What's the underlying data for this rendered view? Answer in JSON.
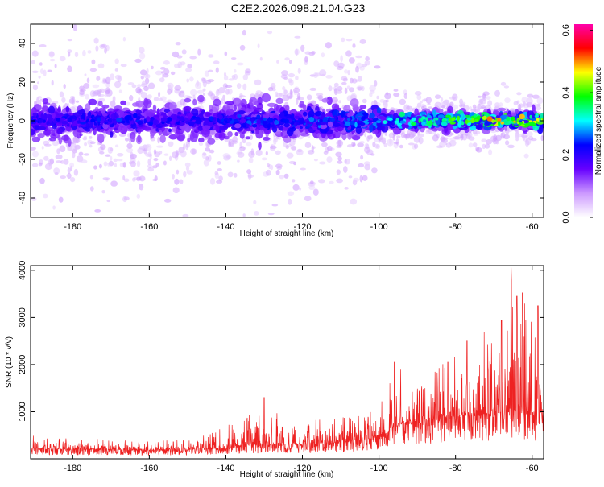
{
  "title": "C2E2.2026.098.21.04.G23",
  "chart_data": [
    {
      "type": "heatmap",
      "name": "spectrogram",
      "xlabel": "Height of straight line (km)",
      "ylabel": "Frequency (Hz)",
      "xlim": [
        -191,
        -57
      ],
      "ylim": [
        -50,
        50
      ],
      "xticks": [
        -180,
        -160,
        -140,
        -120,
        -100,
        -80,
        -60
      ],
      "yticks": [
        -40,
        -20,
        0,
        20,
        40
      ],
      "colorbar": {
        "label": "Normalized spectral amplitude",
        "range": [
          0.0,
          0.62
        ],
        "ticks": [
          0.0,
          0.2,
          0.4,
          0.6
        ],
        "tick_labels": [
          "0.0",
          "0.2",
          "0.4",
          "0.6"
        ],
        "colormap": [
          "#ffffff",
          "#cc99ff",
          "#6600ff",
          "#0000ff",
          "#00ffff",
          "#00ff00",
          "#ffff00",
          "#ff0000",
          "#ff00aa"
        ]
      },
      "band_center_hz": 0,
      "band_halfwidth_hz": 10,
      "band_amplitude_by_height": [
        {
          "x": -190,
          "amp": 0.22
        },
        {
          "x": -170,
          "amp": 0.24
        },
        {
          "x": -150,
          "amp": 0.22
        },
        {
          "x": -130,
          "amp": 0.26
        },
        {
          "x": -110,
          "amp": 0.27
        },
        {
          "x": -100,
          "amp": 0.3
        },
        {
          "x": -90,
          "amp": 0.36
        },
        {
          "x": -80,
          "amp": 0.4
        },
        {
          "x": -70,
          "amp": 0.5
        },
        {
          "x": -60,
          "amp": 0.45
        }
      ]
    },
    {
      "type": "line",
      "name": "snr",
      "xlabel": "Height of straight line (km)",
      "ylabel": "SNR (10 * v/v)",
      "xlim": [
        -191,
        -57
      ],
      "ylim": [
        0,
        4100
      ],
      "xticks": [
        -180,
        -160,
        -140,
        -120,
        -100,
        -80,
        -60
      ],
      "yticks": [
        1000,
        2000,
        3000,
        4000
      ],
      "color": "#ee2222",
      "envelope": [
        {
          "x": -190,
          "base": 200,
          "peak": 500
        },
        {
          "x": -180,
          "base": 200,
          "peak": 450
        },
        {
          "x": -160,
          "base": 180,
          "peak": 380
        },
        {
          "x": -150,
          "base": 190,
          "peak": 420
        },
        {
          "x": -140,
          "base": 220,
          "peak": 700
        },
        {
          "x": -130,
          "base": 300,
          "peak": 1100
        },
        {
          "x": -120,
          "base": 300,
          "peak": 800
        },
        {
          "x": -110,
          "base": 350,
          "peak": 900
        },
        {
          "x": -100,
          "base": 450,
          "peak": 1300
        },
        {
          "x": -95,
          "base": 700,
          "peak": 2000
        },
        {
          "x": -85,
          "base": 800,
          "peak": 2100
        },
        {
          "x": -75,
          "base": 900,
          "peak": 2400
        },
        {
          "x": -65,
          "base": 1000,
          "peak": 4000
        },
        {
          "x": -58,
          "base": 900,
          "peak": 3000
        }
      ],
      "peaks": [
        {
          "x": -130,
          "y": 1300
        },
        {
          "x": -96,
          "y": 2050
        },
        {
          "x": -82,
          "y": 2050
        },
        {
          "x": -77,
          "y": 2500
        },
        {
          "x": -68,
          "y": 2950
        },
        {
          "x": -65.5,
          "y": 4050
        },
        {
          "x": -64,
          "y": 3450
        },
        {
          "x": -62.5,
          "y": 3500
        },
        {
          "x": -58.5,
          "y": 3250
        }
      ]
    }
  ]
}
